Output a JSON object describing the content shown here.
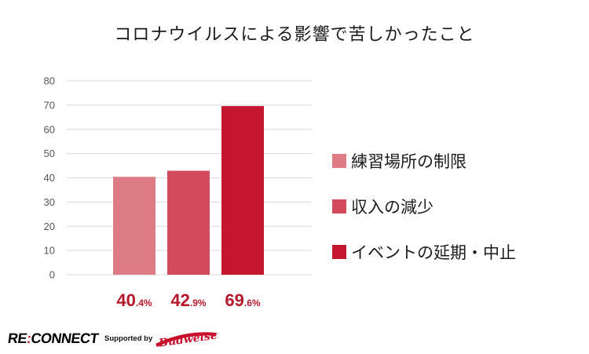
{
  "chart_data": {
    "type": "bar",
    "title": "コロナウイルスによる影響で苦しかったこと",
    "categories": [
      "練習場所の制限",
      "収入の減少",
      "イベントの延期・中止"
    ],
    "values": [
      40.4,
      42.9,
      69.6
    ],
    "data_labels": [
      {
        "main": "40",
        "sub": ".4%"
      },
      {
        "main": "42",
        "sub": ".9%"
      },
      {
        "main": "69",
        "sub": ".6%"
      }
    ],
    "colors": [
      "#dd7c85",
      "#d44a5d",
      "#c4172f"
    ],
    "yticks": [
      "0",
      "10",
      "20",
      "30",
      "40",
      "50",
      "60",
      "70",
      "80"
    ],
    "ylim": [
      0,
      80
    ],
    "grid": true,
    "legend_position": "right"
  },
  "footer": {
    "brand_prefix": "RE",
    "brand_colon": ":",
    "brand_suffix": "CONNECT",
    "supported_by": "Supported by",
    "sponsor_logo_text": "Budweiser"
  }
}
